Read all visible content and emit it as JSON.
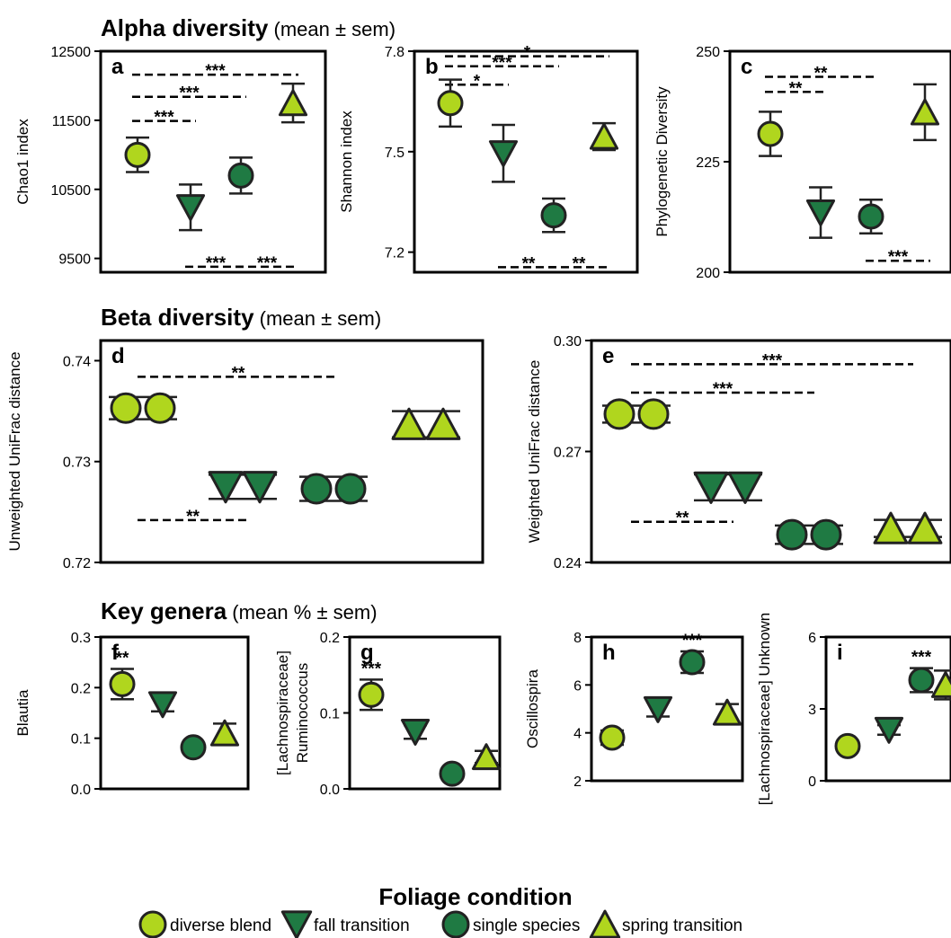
{
  "colors": {
    "light": "#b0d61e",
    "dark": "#1f7a43",
    "stroke": "#222222"
  },
  "section_titles": [
    {
      "bold": "Alpha diversity",
      "rest": " (mean ± sem)"
    },
    {
      "bold": "Beta diversity",
      "rest": " (mean ± sem)"
    },
    {
      "bold": "Key genera",
      "rest": " (mean % ± sem)"
    }
  ],
  "x_title": "Foliage condition",
  "legend": [
    {
      "label": "diverse blend",
      "marker": "circle",
      "color": "light"
    },
    {
      "label": "fall transition",
      "marker": "triangle-down",
      "color": "dark"
    },
    {
      "label": "single species",
      "marker": "circle",
      "color": "dark"
    },
    {
      "label": "spring transition",
      "marker": "triangle-up",
      "color": "light"
    }
  ],
  "chart_data": [
    {
      "id": "a",
      "type": "scatter",
      "ylabel": [
        "Chao1  index"
      ],
      "ylim": [
        9300,
        12500
      ],
      "yticks": [
        "9500",
        "10500",
        "11500",
        "12500"
      ],
      "ytick_values": [
        9500,
        10500,
        11500,
        12500
      ],
      "points": [
        {
          "group": "diverse blend",
          "mean": 11000,
          "sem": 250
        },
        {
          "group": "fall transition",
          "mean": 10240,
          "sem": 330
        },
        {
          "group": "single species",
          "mean": 10700,
          "sem": 260
        },
        {
          "group": "spring transition",
          "mean": 11750,
          "sem": 280
        }
      ],
      "sig": [
        {
          "from": 0,
          "to": 3,
          "label": "***",
          "val": 12160
        },
        {
          "from": 0,
          "to": 2,
          "label": "***",
          "val": 11840
        },
        {
          "from": 0,
          "to": 1,
          "label": "***",
          "val": 11490
        },
        {
          "from": 1,
          "to": 2,
          "label": "***",
          "val": 9380
        },
        {
          "from": 2,
          "to": 3,
          "label": "***",
          "val": 9380
        }
      ]
    },
    {
      "id": "b",
      "type": "scatter",
      "ylabel": [
        "Shannon index"
      ],
      "ylim": [
        7.14,
        7.8
      ],
      "yticks": [
        "7.2",
        "7.5",
        "7.8"
      ],
      "ytick_values": [
        7.2,
        7.5,
        7.8
      ],
      "points": [
        {
          "group": "diverse blend",
          "mean": 7.645,
          "sem": 0.07
        },
        {
          "group": "fall transition",
          "mean": 7.495,
          "sem": 0.085
        },
        {
          "group": "single species",
          "mean": 7.31,
          "sem": 0.05
        },
        {
          "group": "spring transition",
          "mean": 7.545,
          "sem": 0.04
        }
      ],
      "sig": [
        {
          "from": 0,
          "to": 3,
          "label": "*",
          "val": 7.785
        },
        {
          "from": 0,
          "to": 2,
          "label": "***",
          "val": 7.755
        },
        {
          "from": 0,
          "to": 1,
          "label": "*",
          "val": 7.7
        },
        {
          "from": 1,
          "to": 2,
          "label": "**",
          "val": 7.155
        },
        {
          "from": 2,
          "to": 3,
          "label": "**",
          "val": 7.155
        }
      ]
    },
    {
      "id": "c",
      "type": "scatter",
      "ylabel": [
        "Phylogenetic Diversity"
      ],
      "ylim": [
        200,
        250
      ],
      "yticks": [
        "200",
        "225",
        "250"
      ],
      "ytick_values": [
        200,
        225,
        250
      ],
      "points": [
        {
          "group": "diverse blend",
          "mean": 231.3,
          "sem": 5
        },
        {
          "group": "fall transition",
          "mean": 213.5,
          "sem": 5.7
        },
        {
          "group": "single species",
          "mean": 212.6,
          "sem": 3.8
        },
        {
          "group": "spring transition",
          "mean": 236.2,
          "sem": 6.3
        }
      ],
      "sig": [
        {
          "from": 0,
          "to": 2,
          "label": "**",
          "val": 244.2
        },
        {
          "from": 0,
          "to": 1,
          "label": "**",
          "val": 240.8
        },
        {
          "from": 2,
          "to": 3,
          "label": "***",
          "val": 202.6
        }
      ]
    },
    {
      "id": "d",
      "type": "scatter",
      "ylabel": [
        "Unweighted UniFrac distance"
      ],
      "ylim": [
        0.72,
        0.742
      ],
      "yticks": [
        "0.72",
        "0.73",
        "0.74"
      ],
      "ytick_values": [
        0.72,
        0.73,
        0.74
      ],
      "points": [
        {
          "group": "diverse blend",
          "mean": 0.7353,
          "sem": 0.0011
        },
        {
          "group": "fall transition",
          "mean": 0.7275,
          "sem": 0.0012
        },
        {
          "group": "single species",
          "mean": 0.7273,
          "sem": 0.0012
        },
        {
          "group": "spring transition",
          "mean": 0.7337,
          "sem": 0.0013
        }
      ],
      "sig": [
        {
          "from": 0,
          "to": 2,
          "label": "**",
          "val": 0.7384
        },
        {
          "from": 0,
          "to": 1,
          "label": "**",
          "val": 0.7242
        }
      ]
    },
    {
      "id": "e",
      "type": "scatter",
      "ylabel": [
        "Weighted UniFrac distance"
      ],
      "ylim": [
        0.24,
        0.3
      ],
      "yticks": [
        "0.24",
        "0.27",
        "0.30"
      ],
      "ytick_values": [
        0.24,
        0.27,
        0.3
      ],
      "points": [
        {
          "group": "diverse blend",
          "mean": 0.2801,
          "sem": 0.0023
        },
        {
          "group": "fall transition",
          "mean": 0.2603,
          "sem": 0.0035
        },
        {
          "group": "single species",
          "mean": 0.2475,
          "sem": 0.0025
        },
        {
          "group": "spring transition",
          "mean": 0.2492,
          "sem": 0.0023
        }
      ],
      "sig": [
        {
          "from": 0,
          "to": 3,
          "label": "***",
          "val": 0.2936
        },
        {
          "from": 0,
          "to": 2,
          "label": "***",
          "val": 0.2859
        },
        {
          "from": 0,
          "to": 1,
          "label": "**",
          "val": 0.251
        }
      ]
    },
    {
      "id": "f",
      "type": "scatter",
      "ylabel": [
        "Blautia"
      ],
      "ylim": [
        0,
        0.3
      ],
      "yticks": [
        "0.0",
        "0.1",
        "0.2",
        "0.3"
      ],
      "ytick_values": [
        0,
        0.1,
        0.2,
        0.3
      ],
      "points": [
        {
          "group": "diverse blend",
          "mean": 0.207,
          "sem": 0.03
        },
        {
          "group": "fall transition",
          "mean": 0.167,
          "sem": 0.014
        },
        {
          "group": "single species",
          "mean": 0.082,
          "sem": 0.007
        },
        {
          "group": "spring transition",
          "mean": 0.11,
          "sem": 0.019
        }
      ],
      "marks": [
        {
          "index": 0,
          "label": "**"
        }
      ]
    },
    {
      "id": "g",
      "type": "scatter",
      "ylabel": [
        "[Lachnospiraceae]",
        "Ruminococcus"
      ],
      "ylim": [
        0,
        0.2
      ],
      "yticks": [
        "0.0",
        "0.1",
        "0.2"
      ],
      "ytick_values": [
        0,
        0.1,
        0.2
      ],
      "points": [
        {
          "group": "diverse blend",
          "mean": 0.124,
          "sem": 0.02
        },
        {
          "group": "fall transition",
          "mean": 0.075,
          "sem": 0.009
        },
        {
          "group": "single species",
          "mean": 0.02,
          "sem": 0.003
        },
        {
          "group": "spring transition",
          "mean": 0.042,
          "sem": 0.008
        }
      ],
      "marks": [
        {
          "index": 0,
          "label": "***"
        }
      ]
    },
    {
      "id": "h",
      "type": "scatter",
      "ylabel": [
        "Oscillospira"
      ],
      "ylim": [
        2,
        8
      ],
      "yticks": [
        "2",
        "4",
        "6",
        "8"
      ],
      "ytick_values": [
        2,
        4,
        6,
        8
      ],
      "points": [
        {
          "group": "diverse blend",
          "mean": 3.8,
          "sem": 0.3
        },
        {
          "group": "fall transition",
          "mean": 4.98,
          "sem": 0.3
        },
        {
          "group": "single species",
          "mean": 6.95,
          "sem": 0.45
        },
        {
          "group": "spring transition",
          "mean": 4.85,
          "sem": 0.35
        }
      ],
      "marks": [
        {
          "index": 2,
          "label": "***"
        }
      ]
    },
    {
      "id": "i",
      "type": "scatter",
      "ylabel": [
        "[Lachnospiraceae] Unknown"
      ],
      "ylim": [
        0,
        6
      ],
      "yticks": [
        "0",
        "3",
        "6"
      ],
      "ytick_values": [
        0,
        3,
        6
      ],
      "points": [
        {
          "group": "diverse blend",
          "mean": 1.45,
          "sem": 0.1
        },
        {
          "group": "fall transition",
          "mean": 2.12,
          "sem": 0.2
        },
        {
          "group": "single species",
          "mean": 4.2,
          "sem": 0.5
        },
        {
          "group": "spring transition",
          "mean": 4.0,
          "sem": 0.6
        }
      ],
      "marks": [
        {
          "index": 2,
          "label": "***"
        }
      ]
    }
  ]
}
